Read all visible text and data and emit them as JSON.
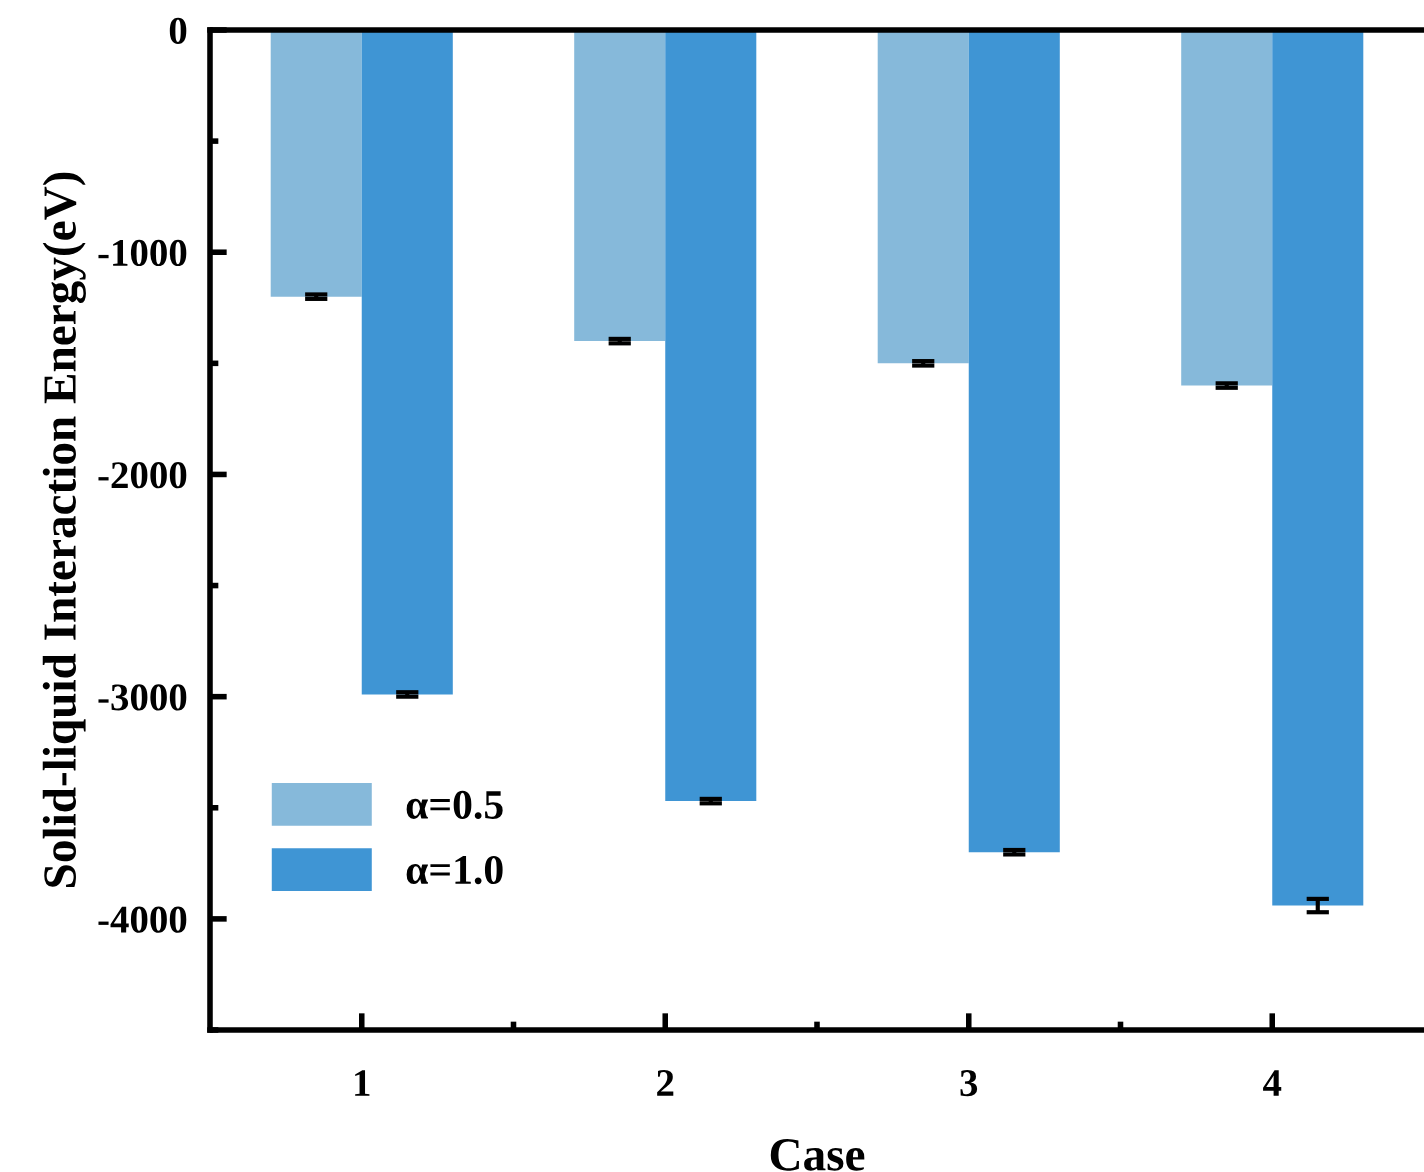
{
  "chart_data": {
    "type": "bar",
    "xlabel": "Case",
    "ylabel": "Solid-liquid Interaction Energy(eV)",
    "categories": [
      "1",
      "2",
      "3",
      "4"
    ],
    "series": [
      {
        "name": "α=0.5",
        "color": "#86b9da",
        "values": [
          -1200,
          -1400,
          -1500,
          -1600
        ],
        "errors": [
          10,
          10,
          10,
          10
        ]
      },
      {
        "name": "α=1.0",
        "color": "#3f95d4",
        "values": [
          -2990,
          -3470,
          -3700,
          -3940
        ],
        "errors": [
          10,
          10,
          10,
          30
        ]
      }
    ],
    "ylim": [
      -4500,
      0
    ],
    "yticks": [
      0,
      -1000,
      -2000,
      -3000,
      -4000
    ],
    "grid": false,
    "legend": "bottom left"
  }
}
